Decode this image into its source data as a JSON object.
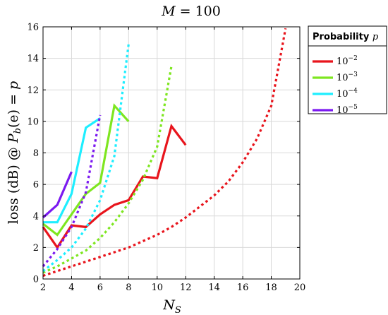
{
  "chart_data": {
    "type": "line",
    "title": {
      "base": "M",
      "rest": " = 100"
    },
    "xlabel": {
      "base": "N",
      "sub": "S"
    },
    "ylabel": {
      "prefix": "loss (dB) @ ",
      "func": "P",
      "sub": "b",
      "arg": "(e)",
      "eq": " = ",
      "var": "p"
    },
    "xlim": [
      2,
      20
    ],
    "ylim": [
      0,
      16
    ],
    "xticks": [
      2,
      4,
      6,
      8,
      10,
      12,
      14,
      16,
      18,
      20
    ],
    "yticks": [
      0,
      2,
      4,
      6,
      8,
      10,
      12,
      14,
      16
    ],
    "grid": true,
    "legend": {
      "position": "right",
      "title_text": "Probability ",
      "title_var": "p"
    },
    "series": [
      {
        "name_base": "10",
        "name_exp": "−2",
        "color": "#e8141c",
        "solid": [
          [
            2,
            3.3
          ],
          [
            3,
            2.0
          ],
          [
            4,
            3.4
          ],
          [
            5,
            3.3
          ],
          [
            6,
            4.1
          ],
          [
            7,
            4.7
          ],
          [
            8,
            5.0
          ],
          [
            9,
            6.5
          ],
          [
            10,
            6.4
          ],
          [
            11,
            9.7
          ],
          [
            12,
            8.5
          ]
        ],
        "dotted": [
          [
            2,
            0.2
          ],
          [
            3,
            0.5
          ],
          [
            4,
            0.8
          ],
          [
            5,
            1.1
          ],
          [
            6,
            1.4
          ],
          [
            7,
            1.7
          ],
          [
            8,
            2.0
          ],
          [
            9,
            2.4
          ],
          [
            10,
            2.8
          ],
          [
            11,
            3.3
          ],
          [
            12,
            3.9
          ],
          [
            13,
            4.6
          ],
          [
            14,
            5.3
          ],
          [
            15,
            6.2
          ],
          [
            16,
            7.4
          ],
          [
            17,
            8.9
          ],
          [
            18,
            11.0
          ],
          [
            19,
            15.9
          ]
        ]
      },
      {
        "name_base": "10",
        "name_exp": "−3",
        "color": "#7ee620",
        "solid": [
          [
            2,
            3.5
          ],
          [
            3,
            2.8
          ],
          [
            4,
            4.1
          ],
          [
            5,
            5.4
          ],
          [
            6,
            6.1
          ],
          [
            7,
            11.0
          ],
          [
            8,
            10.0
          ]
        ],
        "dotted": [
          [
            2,
            0.4
          ],
          [
            3,
            0.8
          ],
          [
            4,
            1.3
          ],
          [
            5,
            1.8
          ],
          [
            6,
            2.6
          ],
          [
            7,
            3.6
          ],
          [
            8,
            4.8
          ],
          [
            9,
            6.3
          ],
          [
            10,
            8.4
          ],
          [
            11,
            13.5
          ]
        ]
      },
      {
        "name_base": "10",
        "name_exp": "−4",
        "color": "#1eeeff",
        "solid": [
          [
            2,
            3.6
          ],
          [
            3,
            3.6
          ],
          [
            4,
            5.4
          ],
          [
            5,
            9.6
          ],
          [
            6,
            10.2
          ]
        ],
        "dotted": [
          [
            2,
            0.5
          ],
          [
            3,
            1.2
          ],
          [
            4,
            2.0
          ],
          [
            5,
            3.2
          ],
          [
            6,
            5.0
          ],
          [
            7,
            7.8
          ],
          [
            8,
            14.9
          ]
        ]
      },
      {
        "name_base": "10",
        "name_exp": "−5",
        "color": "#7b19f0",
        "solid": [
          [
            2,
            3.9
          ],
          [
            3,
            4.7
          ],
          [
            4,
            6.8
          ]
        ],
        "dotted": [
          [
            2,
            0.8
          ],
          [
            3,
            1.9
          ],
          [
            4,
            3.3
          ],
          [
            5,
            5.5
          ],
          [
            6,
            10.4
          ]
        ]
      }
    ]
  }
}
